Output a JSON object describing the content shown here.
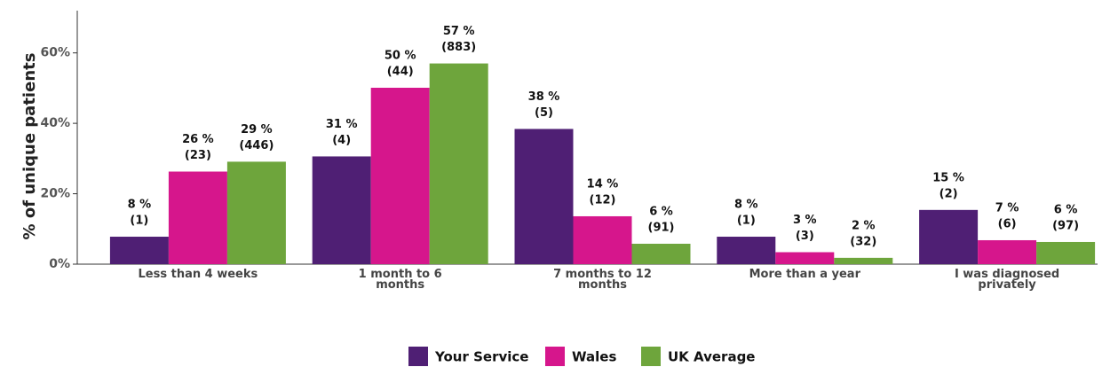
{
  "chart_data": {
    "type": "bar",
    "y_label": "% of unique patients",
    "categories": [
      "Less than 4 weeks",
      "1 month to 6 months",
      "7 months to 12 months",
      "More than a year",
      "I was diagnosed privately"
    ],
    "series": [
      {
        "name": "Your Service",
        "color": "#4f1f74",
        "values": [
          7.8,
          30.6,
          38.4,
          7.8,
          15.4
        ],
        "value_labels": [
          "8 %",
          "31 %",
          "38 %",
          "8 %",
          "15 %"
        ],
        "count_labels": [
          "(1)",
          "(4)",
          "(5)",
          "(1)",
          "(2)"
        ]
      },
      {
        "name": "Wales",
        "color": "#d6168c",
        "values": [
          26.3,
          50.1,
          13.6,
          3.4,
          6.8
        ],
        "value_labels": [
          "26 %",
          "50 %",
          "14 %",
          "3 %",
          "7 %"
        ],
        "count_labels": [
          "(23)",
          "(44)",
          "(12)",
          "(3)",
          "(6)"
        ]
      },
      {
        "name": "UK Average",
        "color": "#6ea53c",
        "values": [
          29.1,
          57.0,
          5.8,
          1.8,
          6.3
        ],
        "value_labels": [
          "29 %",
          "57 %",
          "6 %",
          "2 %",
          "6 %"
        ],
        "count_labels": [
          "(446)",
          "(883)",
          "(91)",
          "(32)",
          "(97)"
        ]
      }
    ],
    "ylim": [
      0,
      72
    ],
    "yticks": [
      {
        "value": 0,
        "label": "0%"
      },
      {
        "value": 20,
        "label": "20%"
      },
      {
        "value": 40,
        "label": "40%"
      },
      {
        "value": 60,
        "label": "60%"
      }
    ],
    "grid": false,
    "legend": "bottom"
  }
}
